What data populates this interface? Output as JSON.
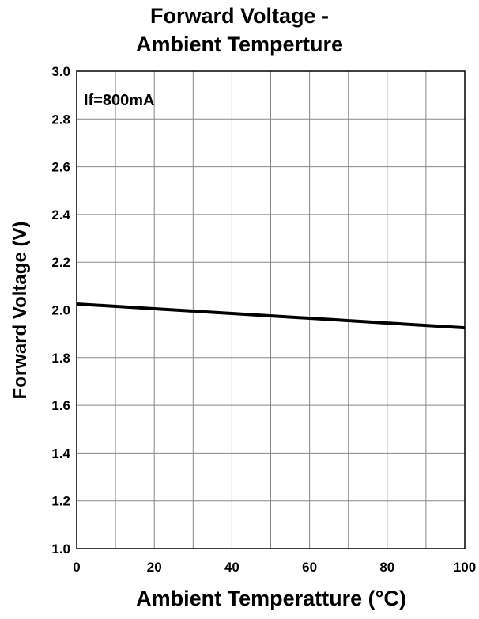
{
  "chart_data": {
    "type": "line",
    "title": [
      "Forward Voltage -",
      "Ambient Temperture"
    ],
    "xlabel": "Ambient Temperatture (°C)",
    "ylabel": "Forward Voltage (V)",
    "xlim": [
      0,
      100
    ],
    "ylim": [
      1.0,
      3.0
    ],
    "x_ticks": [
      0,
      20,
      40,
      60,
      80,
      100
    ],
    "x_tick_labels": [
      "0",
      "20",
      "40",
      "60",
      "80",
      "100"
    ],
    "y_ticks": [
      1.0,
      1.2,
      1.4,
      1.6,
      1.8,
      2.0,
      2.2,
      2.4,
      2.6,
      2.8,
      3.0
    ],
    "y_tick_labels": [
      "1.0",
      "1.2",
      "1.4",
      "1.6",
      "1.8",
      "2.0",
      "2.2",
      "2.4",
      "2.6",
      "2.8",
      "3.0"
    ],
    "x_minor_step": 10,
    "grid": true,
    "annotation": "If=800mA",
    "series": [
      {
        "x": [
          0,
          20,
          40,
          60,
          80,
          100
        ],
        "y": [
          2.025,
          2.005,
          1.985,
          1.965,
          1.945,
          1.925
        ],
        "color": "#000000"
      }
    ]
  }
}
